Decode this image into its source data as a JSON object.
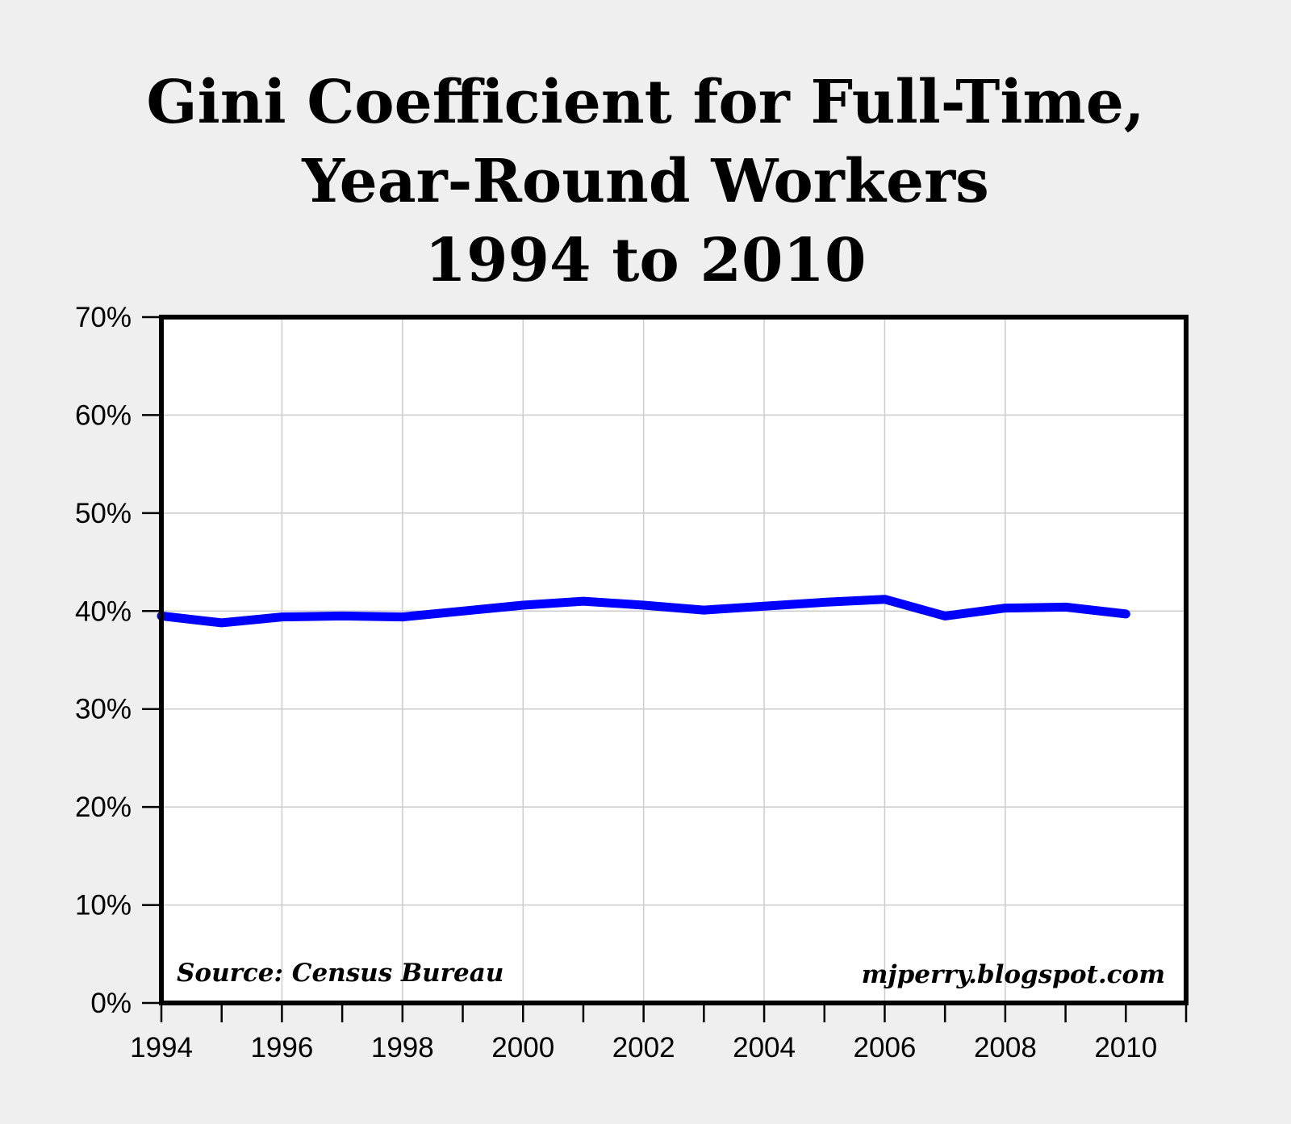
{
  "chart_data": {
    "type": "line",
    "title_lines": [
      "Gini Coefficient for Full-Time,",
      "Year-Round Workers",
      "1994 to 2010"
    ],
    "xlabel": "",
    "ylabel": "",
    "x": [
      1994,
      1995,
      1996,
      1997,
      1998,
      1999,
      2000,
      2001,
      2002,
      2003,
      2004,
      2005,
      2006,
      2007,
      2008,
      2009,
      2010
    ],
    "series": [
      {
        "values": [
          39.5,
          38.8,
          39.4,
          39.5,
          39.4,
          40.0,
          40.6,
          41.0,
          40.6,
          40.1,
          40.5,
          40.9,
          41.2,
          39.5,
          40.3,
          40.4,
          39.7
        ],
        "color": "#0000ff"
      }
    ],
    "xlim": [
      1994,
      2011
    ],
    "ylim": [
      0,
      70
    ],
    "x_ticks": [
      1994,
      1995,
      1996,
      1997,
      1998,
      1999,
      2000,
      2001,
      2002,
      2003,
      2004,
      2005,
      2006,
      2007,
      2008,
      2009,
      2010,
      2011
    ],
    "x_tick_labels": [
      {
        "value": 1994,
        "label": "1994"
      },
      {
        "value": 1996,
        "label": "1996"
      },
      {
        "value": 1998,
        "label": "1998"
      },
      {
        "value": 2000,
        "label": "2000"
      },
      {
        "value": 2002,
        "label": "2002"
      },
      {
        "value": 2004,
        "label": "2004"
      },
      {
        "value": 2006,
        "label": "2006"
      },
      {
        "value": 2008,
        "label": "2008"
      },
      {
        "value": 2010,
        "label": "2010"
      }
    ],
    "y_ticks": [
      {
        "value": 0,
        "label": "0%"
      },
      {
        "value": 10,
        "label": "10%"
      },
      {
        "value": 20,
        "label": "20%"
      },
      {
        "value": 30,
        "label": "30%"
      },
      {
        "value": 40,
        "label": "40%"
      },
      {
        "value": 50,
        "label": "50%"
      },
      {
        "value": 60,
        "label": "60%"
      },
      {
        "value": 70,
        "label": "70%"
      }
    ],
    "vertical_gridlines_at": [
      1996,
      1998,
      2000,
      2002,
      2004,
      2006,
      2008
    ],
    "grid": true,
    "legend": "none",
    "annotations": {
      "source": "Source: Census Bureau",
      "credit": "mjperry.blogspot.com"
    },
    "colors": {
      "background": "#efefef",
      "plot_background": "#ffffff",
      "grid": "#cccccc",
      "frame": "#000000"
    }
  }
}
